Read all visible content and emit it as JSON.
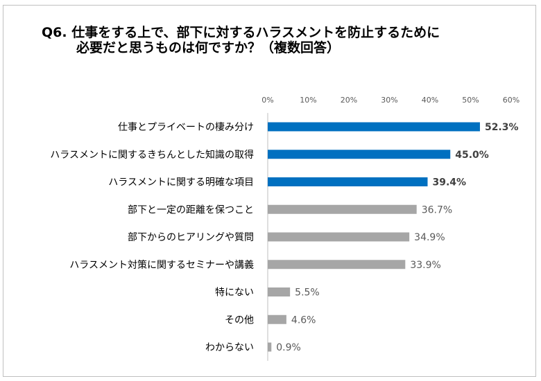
{
  "title_line1": "Q6. 仕事をする上で、部下に対するハラスメントを防止するために",
  "title_line2": "必要だと思うものは何ですか？（複数回答）",
  "colors": {
    "highlight": "#0070c0",
    "normal": "#a6a6a6",
    "highlight_label": "#404040",
    "normal_label": "#595959",
    "axis": "#bfbfbf"
  },
  "chart_data": {
    "type": "bar",
    "orientation": "horizontal",
    "title": "Q6. 仕事をする上で、部下に対するハラスメントを防止するために必要だと思うものは何ですか？（複数回答）",
    "categories": [
      "仕事とプライベートの棲み分け",
      "ハラスメントに関するきちんとした知識の取得",
      "ハラスメントに関する明確な項目",
      "部下と一定の距離を保つこと",
      "部下からのヒアリングや質問",
      "ハラスメント対策に関するセミナーや講義",
      "特にない",
      "その他",
      "わからない"
    ],
    "values": [
      52.3,
      45.0,
      39.4,
      36.7,
      34.9,
      33.9,
      5.5,
      4.6,
      0.9
    ],
    "value_labels": [
      "52.3%",
      "45.0%",
      "39.4%",
      "36.7%",
      "34.9%",
      "33.9%",
      "5.5%",
      "4.6%",
      "0.9%"
    ],
    "highlighted": [
      true,
      true,
      true,
      false,
      false,
      false,
      false,
      false,
      false
    ],
    "xlim": [
      0,
      60
    ],
    "xticks": [
      0,
      10,
      20,
      30,
      40,
      50,
      60
    ],
    "xtick_labels": [
      "0%",
      "10%",
      "20%",
      "30%",
      "40%",
      "50%",
      "60%"
    ],
    "xaxis_position": "top",
    "grid": false,
    "legend": "none"
  }
}
